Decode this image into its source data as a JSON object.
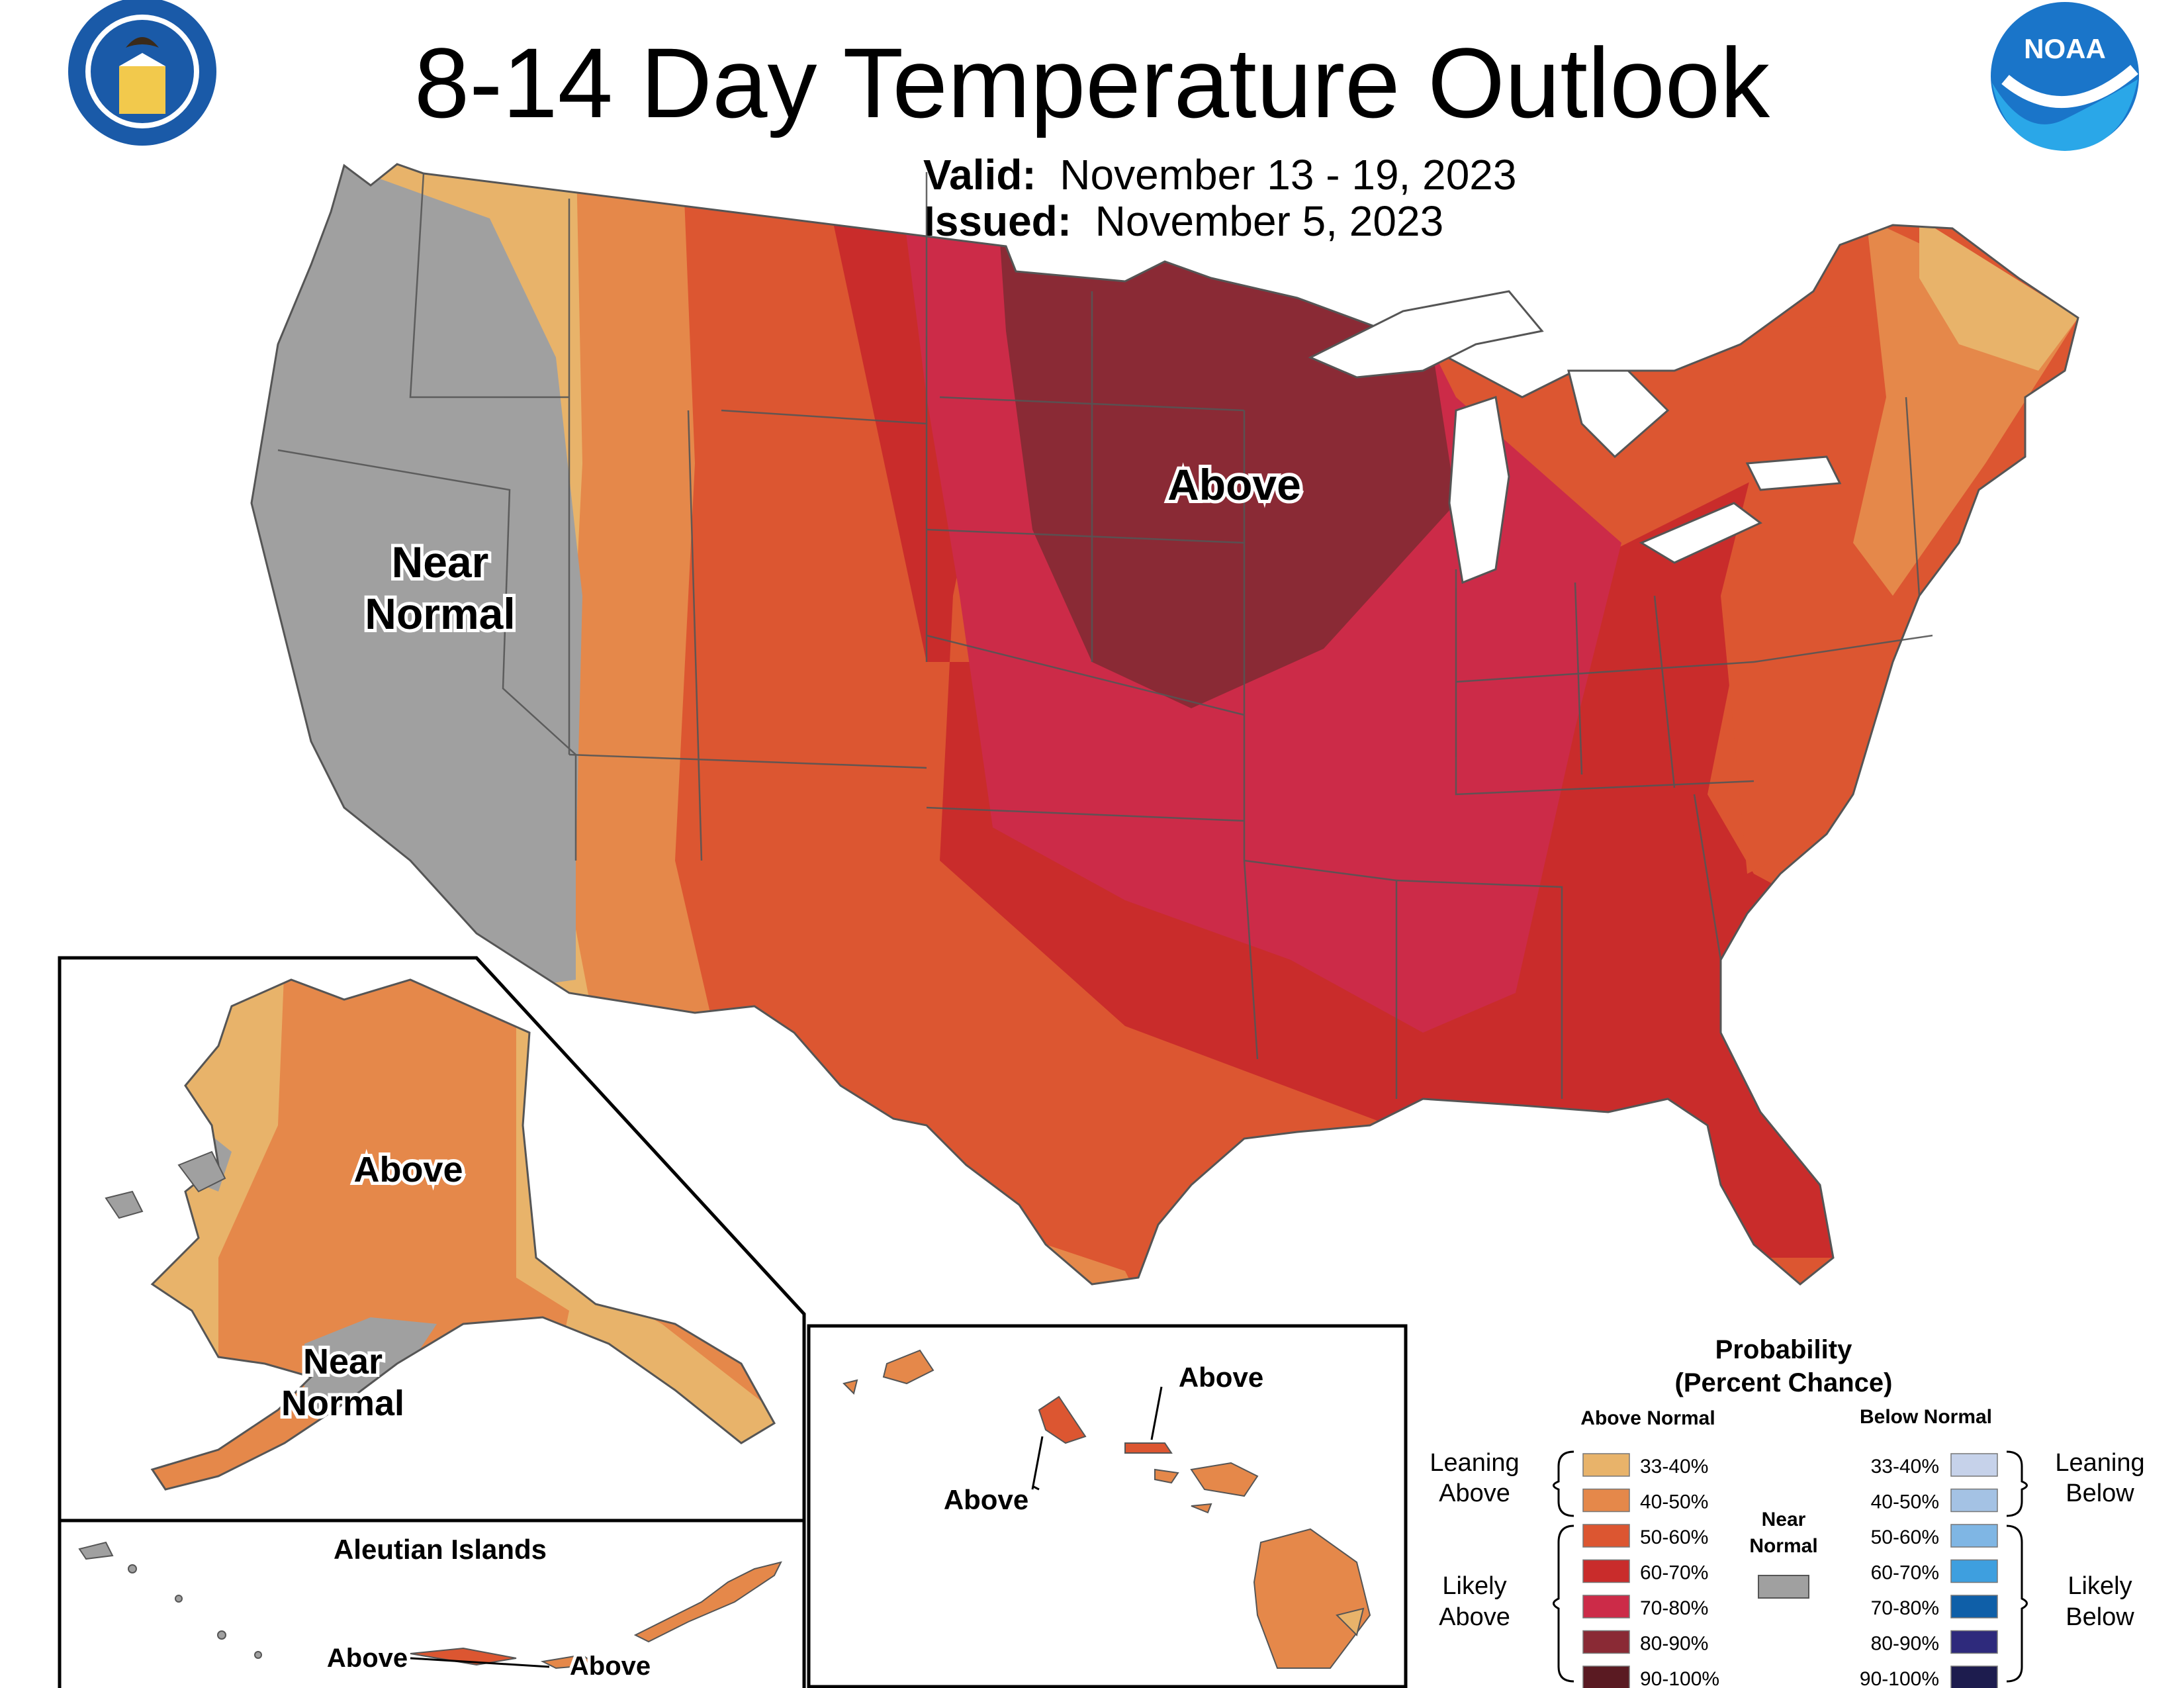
{
  "title": "8-14 Day Temperature Outlook",
  "valid_label": "Valid:",
  "valid_value": "November 13 - 19, 2023",
  "issued_label": "Issued:",
  "issued_value": "November 5, 2023",
  "logos": {
    "left": "dept-of-commerce-seal",
    "right": "noaa-logo",
    "right_text": "NOAA"
  },
  "labels": {
    "conus_above": "Above",
    "conus_near_1": "Near",
    "conus_near_2": "Normal",
    "ak_above": "Above",
    "ak_near_1": "Near",
    "ak_near_2": "Normal",
    "hi_above_1": "Above",
    "hi_above_2": "Above",
    "aleutian_title": "Aleutian Islands",
    "aleutian_above_1": "Above",
    "aleutian_above_2": "Above"
  },
  "legend": {
    "title_1": "Probability",
    "title_2": "(Percent Chance)",
    "above_header": "Above Normal",
    "below_header": "Below Normal",
    "near_1": "Near",
    "near_2": "Normal",
    "leaning_above_1": "Leaning",
    "leaning_above_2": "Above",
    "likely_above_1": "Likely",
    "likely_above_2": "Above",
    "leaning_below_1": "Leaning",
    "leaning_below_2": "Below",
    "likely_below_1": "Likely",
    "likely_below_2": "Below",
    "above": [
      {
        "range": "33-40%",
        "color": "#e8b36a"
      },
      {
        "range": "40-50%",
        "color": "#e5884a"
      },
      {
        "range": "50-60%",
        "color": "#dc5631"
      },
      {
        "range": "60-70%",
        "color": "#c92c2b"
      },
      {
        "range": "70-80%",
        "color": "#cc2b48"
      },
      {
        "range": "80-90%",
        "color": "#8a2a35"
      },
      {
        "range": "90-100%",
        "color": "#5a1a22"
      }
    ],
    "below": [
      {
        "range": "33-40%",
        "color": "#c6d2ea"
      },
      {
        "range": "40-50%",
        "color": "#a4c2e4"
      },
      {
        "range": "50-60%",
        "color": "#7fb6e4"
      },
      {
        "range": "60-70%",
        "color": "#3e9fdf"
      },
      {
        "range": "70-80%",
        "color": "#0f5fa8"
      },
      {
        "range": "80-90%",
        "color": "#2e2a7c"
      },
      {
        "range": "90-100%",
        "color": "#1d1c4e"
      }
    ],
    "near_color": "#a0a0a0"
  }
}
